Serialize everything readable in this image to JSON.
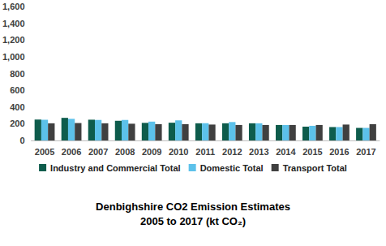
{
  "chart_data": {
    "type": "bar",
    "title": "Denbighshire CO2 Emission Estimates\n2005 to 2017 (kt CO₂)",
    "categories": [
      "2005",
      "2006",
      "2007",
      "2008",
      "2009",
      "2010",
      "2011",
      "2012",
      "2013",
      "2014",
      "2015",
      "2016",
      "2017"
    ],
    "series": [
      {
        "name": "Industry and Commercial Total",
        "color": "#0e5c4c",
        "values": [
          250,
          270,
          248,
          235,
          210,
          212,
          205,
          205,
          205,
          185,
          165,
          160,
          150
        ]
      },
      {
        "name": "Domestic Total",
        "color": "#5cc1ea",
        "values": [
          248,
          258,
          245,
          245,
          225,
          240,
          205,
          220,
          205,
          185,
          175,
          160,
          150
        ]
      },
      {
        "name": "Transport Total",
        "color": "#404040",
        "values": [
          205,
          208,
          205,
          200,
          195,
          195,
          190,
          185,
          185,
          185,
          185,
          190,
          195
        ]
      }
    ],
    "ylim": [
      0,
      1600
    ],
    "yticks": [
      0,
      200,
      400,
      600,
      800,
      1000,
      1200,
      1400,
      1600
    ],
    "grid": false,
    "legend": "bottom"
  }
}
